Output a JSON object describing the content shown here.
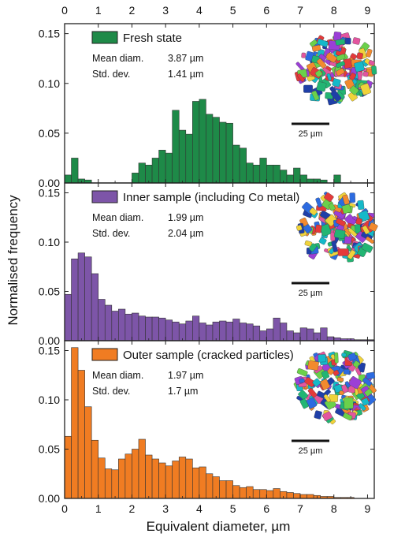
{
  "figure": {
    "ylabel": "Normalised frequency",
    "xlabel": "Equivalent diameter, µm",
    "top_ticks": [
      "0",
      "1",
      "2",
      "3",
      "4",
      "5",
      "6",
      "7",
      "8",
      "9"
    ]
  },
  "chart_data": [
    {
      "type": "bar",
      "legend": "Fresh state",
      "color": "#1e8a48",
      "stats": [
        {
          "label": "Mean diam.",
          "value": "3.87 µm"
        },
        {
          "label": "Std. dev.",
          "value": "1.41 µm"
        }
      ],
      "scale_bar": "25 µm",
      "xlim": [
        0,
        9.2
      ],
      "ylim": [
        0,
        0.16
      ],
      "yticks": [
        "0.00",
        "0.05",
        "0.10",
        "0.15"
      ],
      "bin_width": 0.2,
      "x": [
        0.1,
        0.3,
        0.5,
        0.7,
        0.9,
        1.1,
        1.3,
        1.5,
        1.7,
        1.9,
        2.1,
        2.3,
        2.5,
        2.7,
        2.9,
        3.1,
        3.3,
        3.5,
        3.7,
        3.9,
        4.1,
        4.3,
        4.5,
        4.7,
        4.9,
        5.1,
        5.3,
        5.5,
        5.7,
        5.9,
        6.1,
        6.3,
        6.5,
        6.7,
        6.9,
        7.1,
        7.3,
        7.5,
        7.7,
        7.9,
        8.1
      ],
      "values": [
        0.008,
        0.025,
        0.004,
        0.003,
        0.0,
        0.0,
        0.0,
        0.0,
        0.0,
        0.0,
        0.01,
        0.02,
        0.018,
        0.025,
        0.033,
        0.03,
        0.073,
        0.053,
        0.049,
        0.082,
        0.084,
        0.069,
        0.066,
        0.061,
        0.06,
        0.038,
        0.035,
        0.02,
        0.018,
        0.025,
        0.018,
        0.018,
        0.013,
        0.008,
        0.015,
        0.008,
        0.004,
        0.004,
        0.003,
        0.0,
        0.008
      ]
    },
    {
      "type": "bar",
      "legend": "Inner sample (including Co metal)",
      "color": "#7d55a8",
      "stats": [
        {
          "label": "Mean diam.",
          "value": "1.99 µm"
        },
        {
          "label": "Std. dev.",
          "value": "2.04 µm"
        }
      ],
      "scale_bar": "25 µm",
      "xlim": [
        0,
        9.2
      ],
      "ylim": [
        0,
        0.16
      ],
      "yticks": [
        "0.00",
        "0.05",
        "0.10",
        "0.15"
      ],
      "bin_width": 0.2,
      "x": [
        0.1,
        0.3,
        0.5,
        0.7,
        0.9,
        1.1,
        1.3,
        1.5,
        1.7,
        1.9,
        2.1,
        2.3,
        2.5,
        2.7,
        2.9,
        3.1,
        3.3,
        3.5,
        3.7,
        3.9,
        4.1,
        4.3,
        4.5,
        4.7,
        4.9,
        5.1,
        5.3,
        5.5,
        5.7,
        5.9,
        6.1,
        6.3,
        6.5,
        6.7,
        6.9,
        7.1,
        7.3,
        7.5,
        7.7,
        7.9,
        8.1,
        8.3,
        8.5,
        8.7,
        8.9,
        9.1
      ],
      "values": [
        0.047,
        0.083,
        0.089,
        0.085,
        0.068,
        0.042,
        0.036,
        0.03,
        0.032,
        0.027,
        0.028,
        0.025,
        0.024,
        0.024,
        0.023,
        0.021,
        0.019,
        0.017,
        0.02,
        0.025,
        0.018,
        0.016,
        0.019,
        0.02,
        0.019,
        0.022,
        0.018,
        0.017,
        0.015,
        0.01,
        0.012,
        0.023,
        0.018,
        0.01,
        0.008,
        0.013,
        0.012,
        0.008,
        0.013,
        0.004,
        0.003,
        0.002,
        0.002,
        0.001,
        0.001,
        0.001
      ]
    },
    {
      "type": "bar",
      "legend": "Outer sample (cracked particles)",
      "color": "#f07c22",
      "stats": [
        {
          "label": "Mean diam.",
          "value": "1.97 µm"
        },
        {
          "label": "Std. dev.",
          "value": "1.7 µm"
        }
      ],
      "scale_bar": "25 µm",
      "xlim": [
        0,
        9.2
      ],
      "ylim": [
        0,
        0.16
      ],
      "yticks": [
        "0.00",
        "0.05",
        "0.10",
        "0.15"
      ],
      "xticks": [
        "0",
        "1",
        "2",
        "3",
        "4",
        "5",
        "6",
        "7",
        "8",
        "9"
      ],
      "bin_width": 0.2,
      "x": [
        0.1,
        0.3,
        0.5,
        0.7,
        0.9,
        1.1,
        1.3,
        1.5,
        1.7,
        1.9,
        2.1,
        2.3,
        2.5,
        2.7,
        2.9,
        3.1,
        3.3,
        3.5,
        3.7,
        3.9,
        4.1,
        4.3,
        4.5,
        4.7,
        4.9,
        5.1,
        5.3,
        5.5,
        5.7,
        5.9,
        6.1,
        6.3,
        6.5,
        6.7,
        6.9,
        7.1,
        7.3,
        7.5,
        7.7,
        7.9,
        8.1,
        8.3,
        8.5,
        8.7,
        8.9,
        9.1
      ],
      "values": [
        0.063,
        0.153,
        0.13,
        0.093,
        0.059,
        0.041,
        0.03,
        0.029,
        0.04,
        0.045,
        0.05,
        0.06,
        0.044,
        0.04,
        0.036,
        0.033,
        0.038,
        0.042,
        0.04,
        0.031,
        0.032,
        0.025,
        0.022,
        0.018,
        0.018,
        0.013,
        0.011,
        0.012,
        0.009,
        0.009,
        0.008,
        0.01,
        0.007,
        0.006,
        0.005,
        0.004,
        0.004,
        0.003,
        0.002,
        0.002,
        0.001,
        0.001,
        0.001,
        0.0,
        0.0,
        0.0
      ]
    }
  ]
}
